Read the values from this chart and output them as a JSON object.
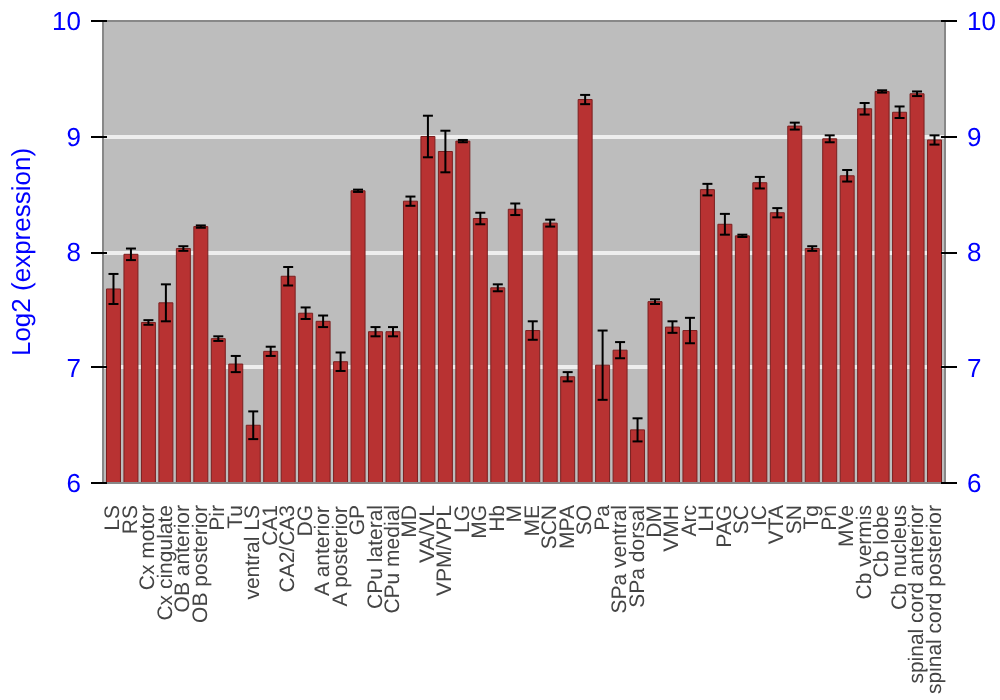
{
  "chart_data": {
    "type": "bar",
    "ylabel": "Log2 (expression)",
    "categories": [
      "LS",
      "RS",
      "Cx motor",
      "Cx cingulate",
      "OB anterior",
      "OB posterior",
      "Pir",
      "Tu",
      "ventral LS",
      "CA1",
      "CA2/CA3",
      "DG",
      "A anterior",
      "A posterior",
      "GP",
      "CPu lateral",
      "CPu medial",
      "MD",
      "VA/VL",
      "VPM/VPL",
      "LG",
      "MG",
      "Hb",
      "M",
      "ME",
      "SCN",
      "MPA",
      "SO",
      "Pa",
      "SPa ventral",
      "SPa dorsal",
      "DM",
      "VMH",
      "Arc",
      "LH",
      "PAG",
      "SC",
      "IC",
      "VTA",
      "SN",
      "Tg",
      "Pn",
      "MVe",
      "Cb vermis",
      "Cb lobe",
      "Cb nucleus",
      "spinal cord anterior",
      "spinal cord posterior"
    ],
    "values": [
      7.68,
      7.98,
      7.39,
      7.56,
      8.03,
      8.22,
      7.25,
      7.03,
      6.5,
      7.14,
      7.79,
      7.47,
      7.4,
      7.05,
      8.53,
      7.31,
      7.31,
      8.44,
      9.0,
      8.87,
      8.96,
      8.29,
      7.69,
      8.37,
      7.32,
      8.25,
      6.92,
      9.32,
      7.02,
      7.15,
      6.46,
      7.57,
      7.35,
      7.32,
      8.54,
      8.24,
      8.14,
      8.6,
      8.34,
      9.09,
      8.03,
      8.98,
      8.66,
      9.24,
      9.39,
      9.21,
      9.37,
      8.97
    ],
    "errors": [
      0.13,
      0.05,
      0.02,
      0.16,
      0.02,
      0.01,
      0.02,
      0.07,
      0.12,
      0.04,
      0.08,
      0.05,
      0.05,
      0.08,
      0.01,
      0.04,
      0.04,
      0.04,
      0.18,
      0.18,
      0.01,
      0.05,
      0.03,
      0.05,
      0.08,
      0.03,
      0.04,
      0.04,
      0.3,
      0.07,
      0.1,
      0.02,
      0.05,
      0.11,
      0.05,
      0.09,
      0.01,
      0.05,
      0.04,
      0.03,
      0.02,
      0.03,
      0.05,
      0.05,
      0.01,
      0.05,
      0.02,
      0.04
    ],
    "color": "#b83232",
    "ylim": [
      6,
      10
    ],
    "yticks": [
      6,
      7,
      8,
      9,
      10
    ],
    "y2lim": [
      6,
      10
    ],
    "y2ticks": [
      6,
      7,
      8,
      9,
      10
    ],
    "grid": "y"
  }
}
